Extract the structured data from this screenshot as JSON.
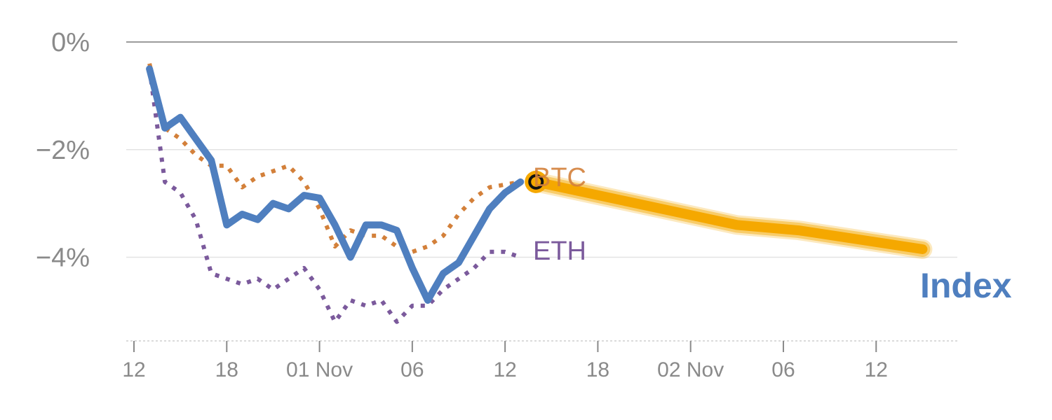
{
  "chart_data": {
    "type": "line",
    "title": "",
    "xlabel": "",
    "ylabel": "",
    "x_tick_labels": [
      "12",
      "18",
      "01 Nov",
      "06",
      "12",
      "18",
      "02 Nov",
      "06",
      "12"
    ],
    "y_tick_labels": [
      "0%",
      "−2%",
      "−4%"
    ],
    "y_tick_values": [
      0,
      -2,
      -4
    ],
    "ylim": [
      -5.5,
      0.3
    ],
    "grid": "horizontal",
    "series": [
      {
        "name": "ETH",
        "color": "#7b5a9c",
        "style": "dotted",
        "x": [
          0,
          1,
          2,
          3,
          4,
          5,
          6,
          7,
          8,
          9,
          10,
          11,
          12,
          13,
          14,
          15,
          16,
          17,
          18,
          19,
          20,
          21,
          22,
          23,
          24
        ],
        "values": [
          -0.5,
          -2.6,
          -2.8,
          -3.3,
          -4.3,
          -4.4,
          -4.5,
          -4.4,
          -4.6,
          -4.4,
          -4.2,
          -4.6,
          -5.2,
          -4.8,
          -4.9,
          -4.8,
          -5.2,
          -4.9,
          -4.9,
          -4.6,
          -4.4,
          -4.2,
          -3.9,
          -3.9,
          -4.0
        ]
      },
      {
        "name": "BTC",
        "color": "#d3803a",
        "style": "dotted",
        "x": [
          0,
          1,
          2,
          3,
          4,
          5,
          6,
          7,
          8,
          9,
          10,
          11,
          12,
          13,
          14,
          15,
          16,
          17,
          18,
          19,
          20,
          21,
          22,
          23,
          24
        ],
        "values": [
          -0.4,
          -1.6,
          -1.8,
          -2.1,
          -2.3,
          -2.3,
          -2.7,
          -2.5,
          -2.4,
          -2.3,
          -2.6,
          -3.1,
          -3.8,
          -3.5,
          -3.6,
          -3.6,
          -3.8,
          -3.9,
          -3.8,
          -3.6,
          -3.2,
          -2.9,
          -2.7,
          -2.65,
          -2.6
        ]
      },
      {
        "name": "Index",
        "color": "#4f7fbf",
        "style": "solid",
        "x": [
          0,
          1,
          2,
          3,
          4,
          5,
          6,
          7,
          8,
          9,
          10,
          11,
          12,
          13,
          14,
          15,
          16,
          17,
          18,
          19,
          20,
          21,
          22,
          23,
          24
        ],
        "values": [
          -0.5,
          -1.6,
          -1.4,
          -1.8,
          -2.2,
          -3.4,
          -3.2,
          -3.3,
          -3.0,
          -3.1,
          -2.85,
          -2.9,
          -3.4,
          -4.0,
          -3.4,
          -3.4,
          -3.5,
          -4.2,
          -4.8,
          -4.3,
          -4.1,
          -3.6,
          -3.1,
          -2.8,
          -2.6
        ]
      }
    ],
    "projection": {
      "color": "#f5a800",
      "x": [
        25,
        38,
        42,
        50
      ],
      "values": [
        -2.6,
        -3.4,
        -3.5,
        -3.85
      ]
    },
    "highlight_point": {
      "x": 25,
      "value": -2.6
    }
  }
}
